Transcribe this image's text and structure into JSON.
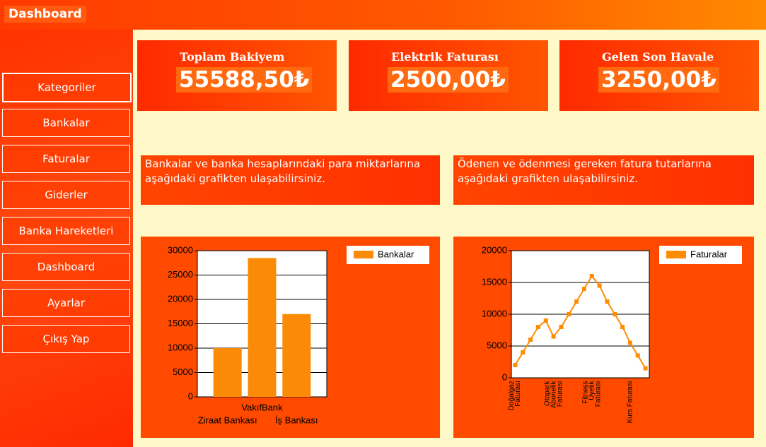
{
  "header": {
    "title": "Dashboard"
  },
  "menu": [
    "Kategoriler",
    "Bankalar",
    "Faturalar",
    "Giderler",
    "Banka Hareketleri",
    "Dashboard",
    "Ayarlar",
    "Çıkış Yap"
  ],
  "cards": [
    {
      "title": "Toplam Bakiyem",
      "value": "55588,50₺"
    },
    {
      "title": "Elektrik Faturası",
      "value": "2500,00₺"
    },
    {
      "title": "Gelen Son Havale",
      "value": "3250,00₺"
    }
  ],
  "descriptions": [
    "Bankalar ve banka hesaplarındaki para miktarlarına aşağıdaki grafikten ulaşabilirsiniz.",
    "Ödenen ve ödenmesi gereken fatura tutarlarına aşağıdaki grafikten ulaşabilirsiniz."
  ],
  "chart_data": [
    {
      "type": "bar",
      "categories": [
        "Ziraat Bankası",
        "VakıfBank",
        "İş Bankası"
      ],
      "series": [
        {
          "name": "Bankalar",
          "color": "#fb8a06",
          "values": [
            10000,
            28500,
            17000
          ]
        }
      ],
      "ylim": [
        0,
        30000
      ],
      "yticks": [
        0,
        5000,
        10000,
        15000,
        20000,
        25000,
        30000
      ],
      "grid": true,
      "legend": "top-right"
    },
    {
      "type": "line",
      "categories": [
        "Doğalgaz Faturası",
        null,
        null,
        null,
        null,
        "Otopark Abonelik Faturası",
        null,
        null,
        null,
        null,
        "Fitness Üyelik Faturası",
        null,
        null,
        null,
        null,
        "Kurs Faturası",
        null,
        null
      ],
      "series": [
        {
          "name": "Faturalar",
          "color": "#ff8c00",
          "values": [
            2000,
            4000,
            6000,
            8000,
            9000,
            6500,
            8000,
            10000,
            12000,
            14000,
            16000,
            14500,
            12000,
            10000,
            8000,
            5500,
            3500,
            1500
          ]
        }
      ],
      "ylim": [
        0,
        20000
      ],
      "yticks": [
        0,
        5000,
        10000,
        15000,
        20000
      ],
      "grid": true,
      "legend": "top-right"
    }
  ]
}
